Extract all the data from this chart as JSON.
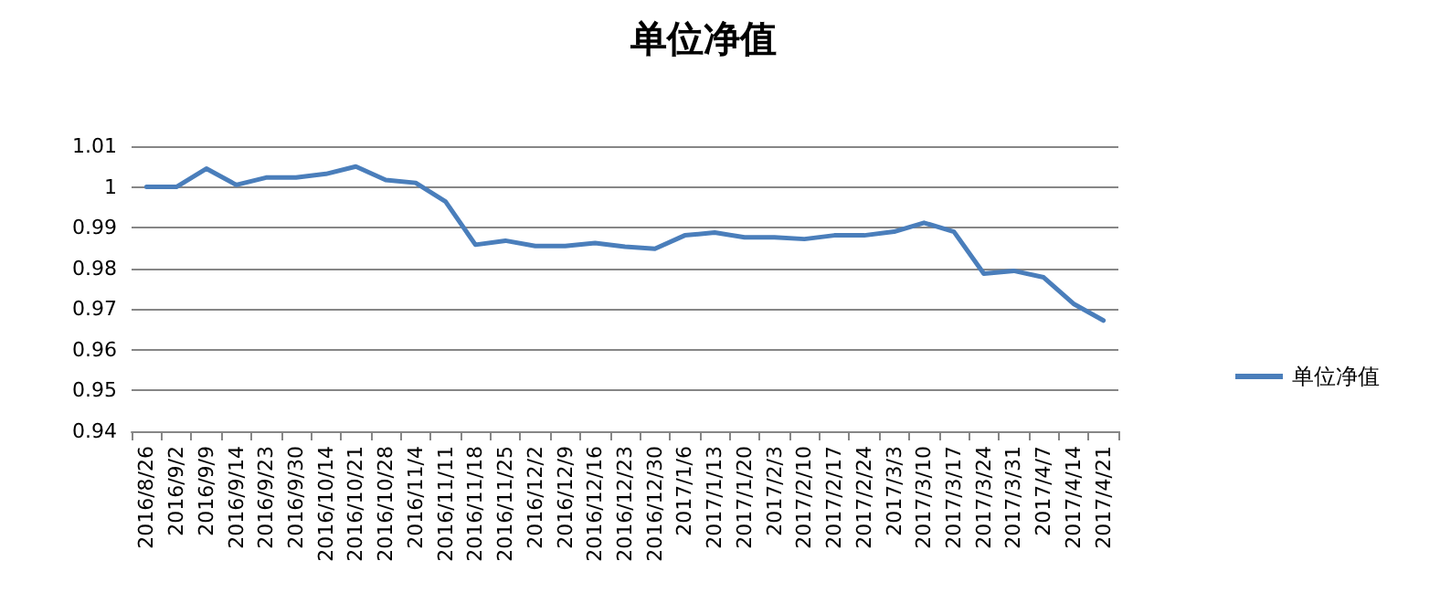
{
  "chart_data": {
    "type": "line",
    "title": "单位净值",
    "categories": [
      "2016/8/26",
      "2016/9/2",
      "2016/9/9",
      "2016/9/14",
      "2016/9/23",
      "2016/9/30",
      "2016/10/14",
      "2016/10/21",
      "2016/10/28",
      "2016/11/4",
      "2016/11/11",
      "2016/11/18",
      "2016/11/25",
      "2016/12/2",
      "2016/12/9",
      "2016/12/16",
      "2016/12/23",
      "2016/12/30",
      "2017/1/6",
      "2017/1/13",
      "2017/1/20",
      "2017/2/3",
      "2017/2/10",
      "2017/2/17",
      "2017/2/24",
      "2017/3/3",
      "2017/3/10",
      "2017/3/17",
      "2017/3/24",
      "2017/3/31",
      "2017/4/7",
      "2017/4/14",
      "2017/4/21"
    ],
    "series": [
      {
        "name": "单位净值",
        "color": "#4a7ebb",
        "values": [
          1.0,
          1.0,
          1.0045,
          1.0005,
          1.0023,
          1.0023,
          1.0032,
          1.005,
          1.0017,
          1.001,
          0.9964,
          0.9858,
          0.9868,
          0.9855,
          0.9855,
          0.9862,
          0.9853,
          0.9848,
          0.9881,
          0.9888,
          0.9876,
          0.9876,
          0.9872,
          0.9881,
          0.9881,
          0.989,
          0.9912,
          0.989,
          0.9787,
          0.9794,
          0.9778,
          0.9713,
          0.9672
        ]
      }
    ],
    "ylim": [
      0.94,
      1.01
    ],
    "yticks": [
      0.94,
      0.95,
      0.96,
      0.97,
      0.98,
      0.99,
      1,
      1.01
    ],
    "grid": "y",
    "legend": "right",
    "marker": "none",
    "line_style": "solid"
  }
}
